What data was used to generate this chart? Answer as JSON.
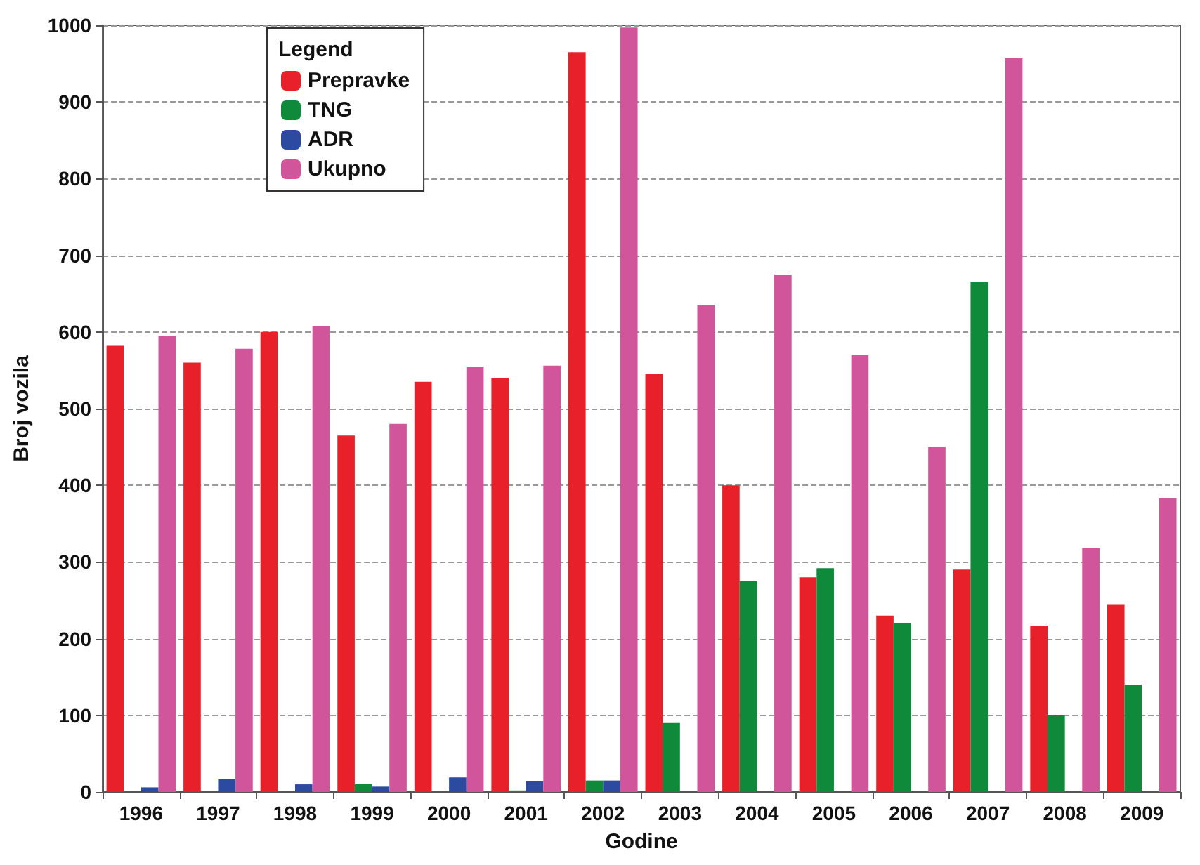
{
  "chart_data": {
    "type": "bar",
    "xlabel": "Godine",
    "ylabel": "Broj vozila",
    "legend_title": "Legend",
    "categories": [
      "1996",
      "1997",
      "1998",
      "1999",
      "2000",
      "2001",
      "2002",
      "2003",
      "2004",
      "2005",
      "2006",
      "2007",
      "2008",
      "2009"
    ],
    "series": [
      {
        "name": "Prepravke",
        "color": "#e8202a",
        "values": [
          582,
          560,
          600,
          465,
          535,
          540,
          965,
          545,
          400,
          280,
          230,
          290,
          217,
          245
        ]
      },
      {
        "name": "TNG",
        "color": "#0f8a3a",
        "values": [
          0,
          0,
          0,
          10,
          0,
          2,
          15,
          90,
          275,
          292,
          220,
          665,
          100,
          140
        ]
      },
      {
        "name": "ADR",
        "color": "#2b4aa0",
        "values": [
          6,
          17,
          10,
          7,
          19,
          14,
          15,
          0,
          0,
          0,
          0,
          0,
          0,
          0
        ]
      },
      {
        "name": "Ukupno",
        "color": "#d1559a",
        "values": [
          595,
          578,
          608,
          480,
          555,
          556,
          997,
          635,
          675,
          570,
          450,
          957,
          318,
          383
        ]
      }
    ],
    "ylim": [
      0,
      1000
    ],
    "yticks": [
      0,
      100,
      200,
      300,
      400,
      500,
      600,
      700,
      800,
      900,
      1000
    ],
    "grid": "y",
    "legend": "top left"
  }
}
